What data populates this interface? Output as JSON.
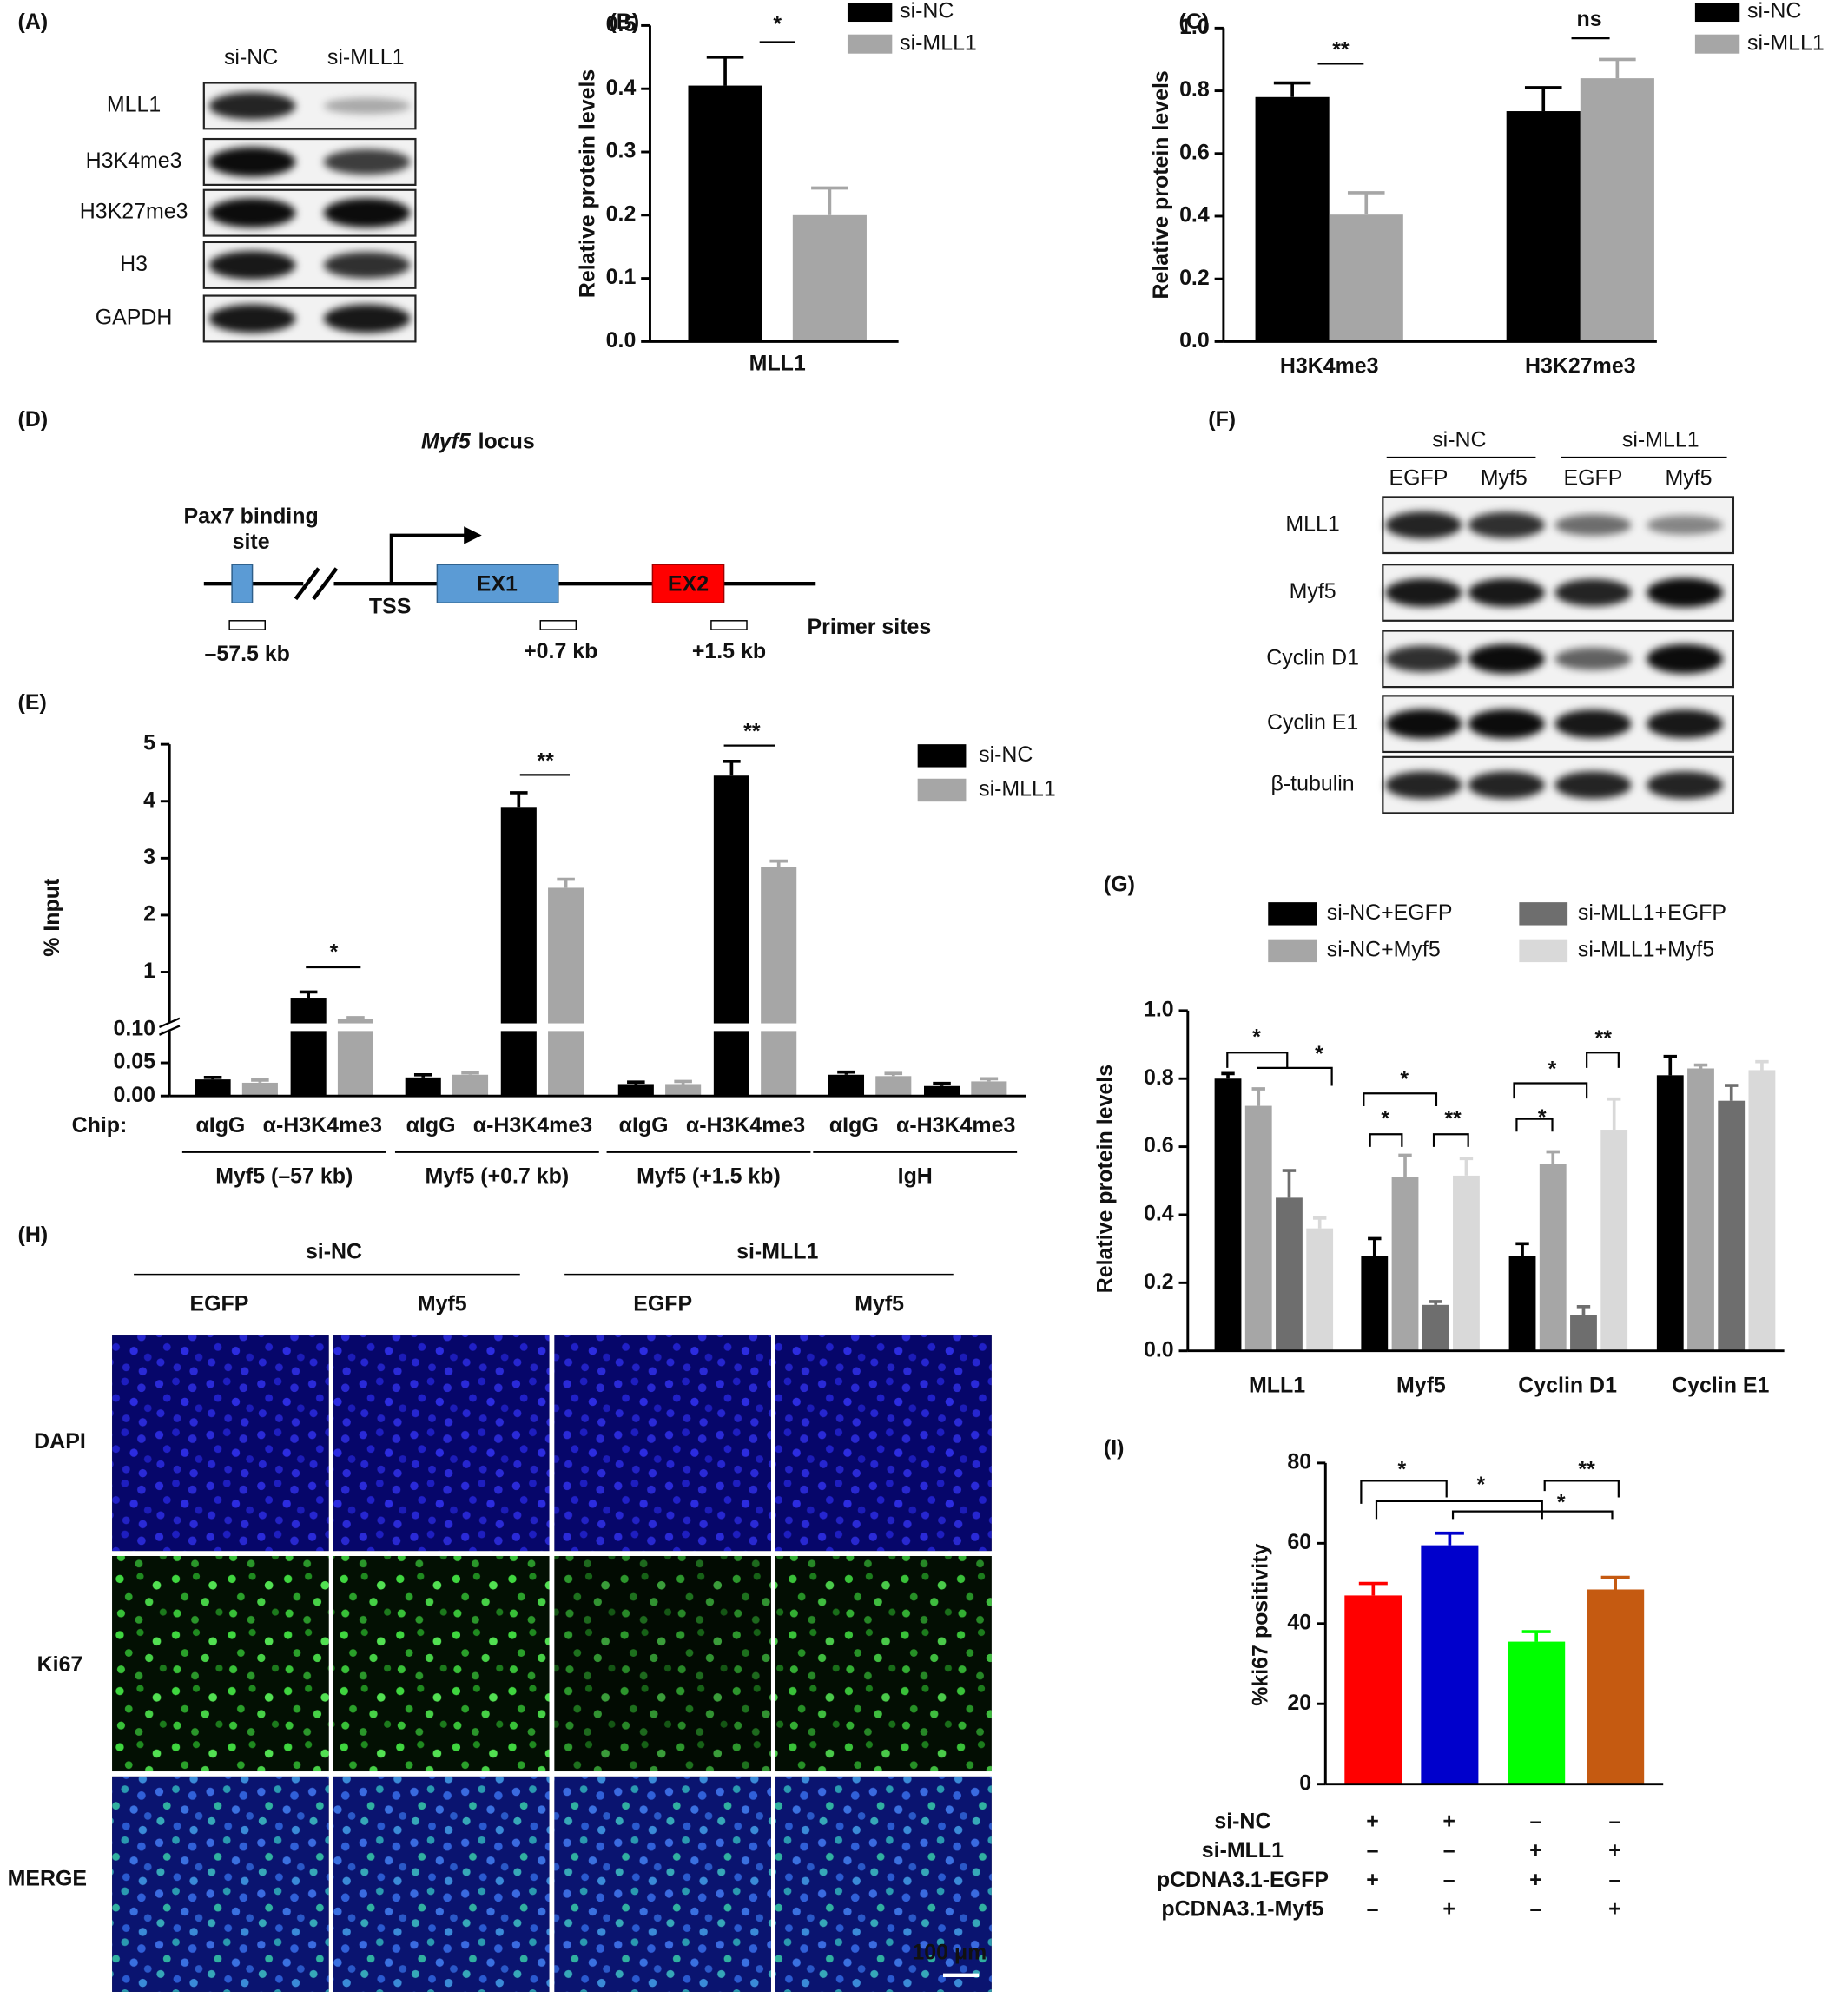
{
  "panel_labels": [
    "(A)",
    "(B)",
    "(C)",
    "(D)",
    "(E)",
    "(F)",
    "(G)",
    "(H)",
    "(I)"
  ],
  "blot_A": {
    "columns": [
      "si-NC",
      "si-MLL1"
    ],
    "rows": [
      "MLL1",
      "H3K4me3",
      "H3K27me3",
      "H3",
      "GAPDH"
    ]
  },
  "chart_data": [
    {
      "type": "bar",
      "ylabel": "Relative protein levels",
      "categories": [
        "MLL1"
      ],
      "series": [
        {
          "name": "si-NC",
          "color": "#000000",
          "values": [
            0.405
          ],
          "errors": [
            0.045
          ]
        },
        {
          "name": "si-MLL1",
          "color": "#a6a6a6",
          "values": [
            0.2
          ],
          "errors": [
            0.043
          ]
        }
      ],
      "ylim": [
        0,
        0.5
      ],
      "yticks": [
        {
          "value": 0,
          "label": "0.0"
        },
        0.1,
        0.2,
        0.3,
        0.4,
        0.5
      ],
      "annotations": [
        "*"
      ],
      "legend": "top-right"
    },
    {
      "type": "bar",
      "ylabel": "Relative protein levels",
      "categories": [
        "H3K4me3",
        "H3K27me3"
      ],
      "series": [
        {
          "name": "si-NC",
          "color": "#000000",
          "values": [
            0.78,
            0.735
          ],
          "errors": [
            0.045,
            0.075
          ]
        },
        {
          "name": "si-MLL1",
          "color": "#a6a6a6",
          "values": [
            0.405,
            0.84
          ],
          "errors": [
            0.07,
            0.06
          ]
        }
      ],
      "ylim": [
        0,
        1
      ],
      "yticks": [
        {
          "value": 0,
          "label": "0.0"
        },
        0.2,
        0.4,
        0.6,
        0.8,
        {
          "value": 1,
          "label": "1.0"
        }
      ],
      "annotations": [
        "**",
        "ns"
      ],
      "legend": "top-right"
    },
    {
      "type": "bar",
      "ylabel": "% Input",
      "xlabel": "Chip:",
      "categories": [
        "αIgG",
        "α-H3K4me3",
        "αIgG",
        "α-H3K4me3",
        "αIgG",
        "α-H3K4me3",
        "αIgG",
        "α-H3K4me3"
      ],
      "groups": [
        "Myf5 (–57 kb)",
        "Myf5 (+0.7 kb)",
        "Myf5 (+1.5 kb)",
        "IgH"
      ],
      "series": [
        {
          "name": "si-NC",
          "color": "#000000",
          "values": [
            0.025,
            0.55,
            0.028,
            3.9,
            0.018,
            4.45,
            0.032,
            0.015
          ],
          "errors": [
            0.003,
            0.1,
            0.004,
            0.25,
            0.003,
            0.25,
            0.004,
            0.004
          ]
        },
        {
          "name": "si-MLL1",
          "color": "#a6a6a6",
          "values": [
            0.02,
            0.17,
            0.032,
            2.48,
            0.018,
            2.85,
            0.03,
            0.022
          ],
          "errors": [
            0.004,
            0.03,
            0.003,
            0.15,
            0.004,
            0.1,
            0.004,
            0.004
          ]
        }
      ],
      "ylim": [
        0,
        5
      ],
      "ybreak": 0.1,
      "yticks": [
        {
          "value": 0,
          "label": "0.00"
        },
        0.05,
        {
          "value": 0.1,
          "label": "0.10"
        },
        1,
        2,
        3,
        4,
        5
      ],
      "annotations": [
        "*",
        "**",
        "**"
      ],
      "legend": "top-right"
    },
    {
      "type": "bar",
      "ylabel": "Relative protein levels",
      "categories": [
        "MLL1",
        "Myf5",
        "Cyclin D1",
        "Cyclin E1"
      ],
      "series": [
        {
          "name": "si-NC+EGFP",
          "color": "#000000",
          "values": [
            0.8,
            0.28,
            0.28,
            0.81
          ],
          "errors": [
            0.015,
            0.05,
            0.035,
            0.055
          ]
        },
        {
          "name": "si-NC+Myf5",
          "color": "#a6a6a6",
          "values": [
            0.72,
            0.51,
            0.55,
            0.83
          ],
          "errors": [
            0.05,
            0.065,
            0.035,
            0.01
          ]
        },
        {
          "name": "si-MLL1+EGFP",
          "color": "#6e6e6e",
          "values": [
            0.45,
            0.135,
            0.105,
            0.735
          ],
          "errors": [
            0.08,
            0.01,
            0.025,
            0.045
          ]
        },
        {
          "name": "si-MLL1+Myf5",
          "color": "#d9d9d9",
          "values": [
            0.36,
            0.515,
            0.65,
            0.825
          ],
          "errors": [
            0.03,
            0.05,
            0.09,
            0.025
          ]
        }
      ],
      "ylim": [
        0,
        1
      ],
      "yticks": [
        {
          "value": 0,
          "label": "0.0"
        },
        0.2,
        0.4,
        0.6,
        0.8,
        {
          "value": 1,
          "label": "1.0"
        }
      ],
      "annotations": [
        "*",
        "*",
        "*",
        "*",
        "**",
        "*",
        "*",
        "**"
      ],
      "legend": "top"
    },
    {
      "type": "bar",
      "ylabel": "%ki67 positivity",
      "categories": [
        null,
        null,
        null,
        null
      ],
      "series": [
        {
          "colors": [
            "#ff0000",
            "#0000cc",
            "#00ff00",
            "#c55a11"
          ],
          "values": [
            47,
            59.5,
            35.5,
            48.5
          ],
          "errors": [
            3,
            3,
            2.5,
            3
          ]
        }
      ],
      "ylim": [
        0,
        80
      ],
      "yticks": [
        0,
        20,
        40,
        60,
        80
      ],
      "annotations": [
        "*",
        "*",
        "**",
        "*"
      ],
      "conditions": [
        {
          "name": "si-NC",
          "signs": [
            "+",
            "+",
            "–",
            "–"
          ]
        },
        {
          "name": "si-MLL1",
          "signs": [
            "–",
            "–",
            "+",
            "+"
          ]
        },
        {
          "name": "pCDNA3.1-EGFP",
          "signs": [
            "+",
            "–",
            "+",
            "–"
          ]
        },
        {
          "name": "pCDNA3.1-Myf5",
          "signs": [
            "–",
            "+",
            "–",
            "+"
          ]
        }
      ]
    }
  ],
  "diagram_D": {
    "title": {
      "gene": "Myf5",
      "text": "locus"
    },
    "pax7_label": [
      "Pax7 binding",
      "site"
    ],
    "tss": "TSS",
    "exons": [
      "EX1",
      "EX2"
    ],
    "primer_label": "Primer sites",
    "primers": [
      "–57.5 kb",
      "+0.7 kb",
      "+1.5 kb"
    ]
  },
  "blot_F": {
    "groups": [
      "si-NC",
      "si-MLL1"
    ],
    "columns": [
      "EGFP",
      "Myf5",
      "EGFP",
      "Myf5"
    ],
    "rows": [
      "MLL1",
      "Myf5",
      "Cyclin D1",
      "Cyclin E1",
      "β-tubulin"
    ]
  },
  "images_H": {
    "groups": [
      "si-NC",
      "si-MLL1"
    ],
    "columns": [
      "EGFP",
      "Myf5",
      "EGFP",
      "Myf5"
    ],
    "rows": [
      "DAPI",
      "Ki67",
      "MERGE"
    ],
    "scale_bar": "100 μm"
  }
}
